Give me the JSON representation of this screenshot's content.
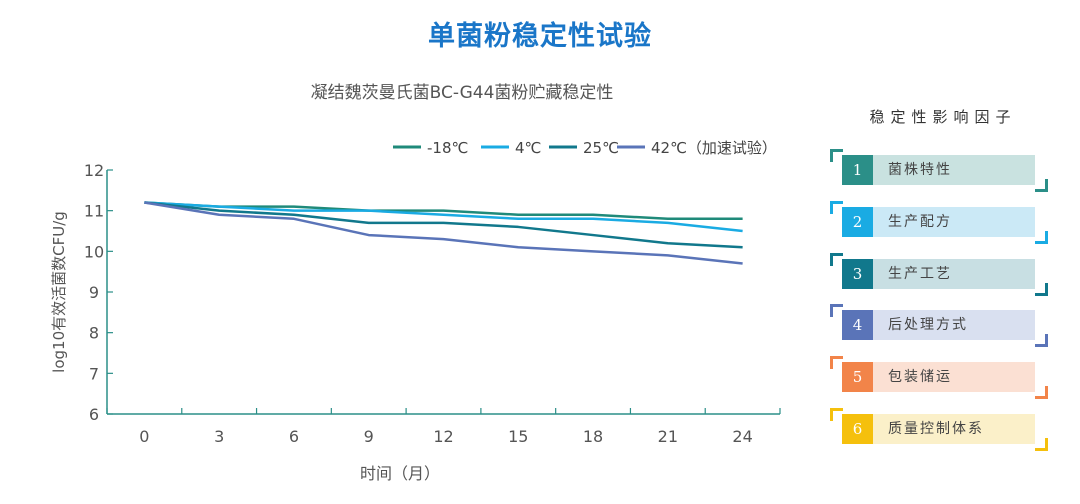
{
  "page_title": "单菌粉稳定性试验",
  "chart_data": {
    "type": "line",
    "title": "凝结魏茨曼氏菌BC-G44菌粉贮藏稳定性",
    "xlabel": "时间（月）",
    "ylabel": "log10有效活菌数CFU/g",
    "x": [
      0,
      3,
      6,
      9,
      12,
      15,
      18,
      21,
      24
    ],
    "xlim": [
      -1.5,
      25.5
    ],
    "ylim": [
      6,
      12
    ],
    "yticks": [
      6,
      7,
      8,
      9,
      10,
      11,
      12
    ],
    "grid": false,
    "legend_position": "top-right",
    "series": [
      {
        "name": "-18℃",
        "color": "#1f8a7a",
        "values": [
          11.2,
          11.1,
          11.1,
          11.0,
          11.0,
          10.9,
          10.9,
          10.8,
          10.8
        ]
      },
      {
        "name": "4℃",
        "color": "#1aabe3",
        "values": [
          11.2,
          11.1,
          11.0,
          11.0,
          10.9,
          10.8,
          10.8,
          10.7,
          10.5
        ]
      },
      {
        "name": "25℃",
        "color": "#11788c",
        "values": [
          11.2,
          11.0,
          10.9,
          10.7,
          10.7,
          10.6,
          10.4,
          10.2,
          10.1
        ]
      },
      {
        "name": "42℃（加速试验）",
        "color": "#5a74b8",
        "values": [
          11.2,
          10.9,
          10.8,
          10.4,
          10.3,
          10.1,
          10.0,
          9.9,
          9.7
        ]
      }
    ]
  },
  "factors_panel": {
    "title": "稳定性影响因子",
    "items": [
      {
        "num": "1",
        "label": "菌株特性",
        "color": "#2b8f88",
        "light": "#c9e2e0"
      },
      {
        "num": "2",
        "label": "生产配方",
        "color": "#1aabe3",
        "light": "#cbe9f6"
      },
      {
        "num": "3",
        "label": "生产工艺",
        "color": "#11788c",
        "light": "#c8dfe3"
      },
      {
        "num": "4",
        "label": "后处理方式",
        "color": "#5a74b8",
        "light": "#d9e0f0"
      },
      {
        "num": "5",
        "label": "包装储运",
        "color": "#f28449",
        "light": "#fbe0d3"
      },
      {
        "num": "6",
        "label": "质量控制体系",
        "color": "#f5c00d",
        "light": "#fbf0c9"
      }
    ]
  }
}
